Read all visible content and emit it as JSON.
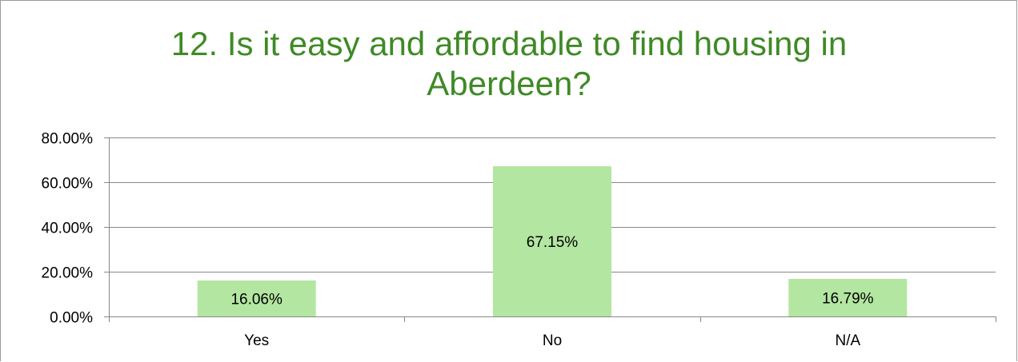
{
  "chart_data": {
    "type": "bar",
    "title_lines": [
      "12. Is it easy and affordable to find housing in",
      "Aberdeen?"
    ],
    "categories": [
      "Yes",
      "No",
      "N/A"
    ],
    "values": [
      16.06,
      67.15,
      16.79
    ],
    "data_labels": [
      "16.06%",
      "67.15%",
      "16.79%"
    ],
    "y_ticks": [
      0,
      20,
      40,
      60,
      80
    ],
    "y_tick_labels": [
      "0.00%",
      "20.00%",
      "40.00%",
      "60.00%",
      "80.00%"
    ],
    "ylim": [
      0,
      80
    ],
    "grid": true,
    "legend": "none",
    "colors": {
      "bar_fill": "#b3e6a1",
      "title": "#3f8a26",
      "gridline": "#888888",
      "axis": "#888888"
    }
  }
}
